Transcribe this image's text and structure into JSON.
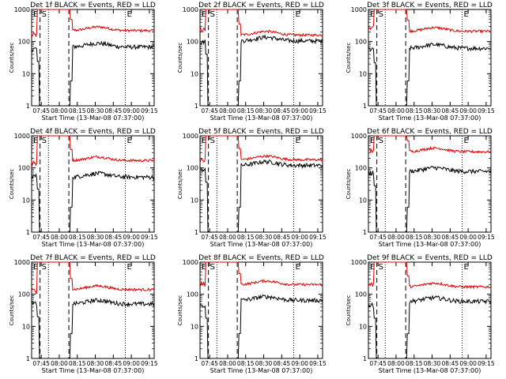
{
  "panel_titles": [
    "Det 1f BLACK = Events, RED = LLD",
    "Det 2f BLACK = Events, RED = LLD",
    "Det 3f BLACK = Events, RED = LLD",
    "Det 4f BLACK = Events, RED = LLD",
    "Det 5f BLACK = Events, RED = LLD",
    "Det 6f BLACK = Events, RED = LLD",
    "Det 7f BLACK = Events, RED = LLD",
    "Det 8f BLACK = Events, RED = LLD",
    "Det 9f BLACK = Events, RED = LLD"
  ],
  "chart_data": {
    "type": "line",
    "xlabel": "Start Time (13-Mar-08 07:37:00)",
    "ylabel": "Counts/sec",
    "yscale": "log",
    "ylim": [
      1,
      1000
    ],
    "x_tick_labels": [
      "07:45",
      "08:00",
      "08:15",
      "08:30",
      "08:45",
      "09:00",
      "09:15"
    ],
    "y_tick_labels": [
      "1",
      "10",
      "100",
      "1000"
    ],
    "series_colors": {
      "events": "#000000",
      "lld": "#e00000"
    },
    "markers": {
      "S_dashed": [
        "07:44",
        "08:08"
      ],
      "E_dotted": [
        "07:51",
        "08:55"
      ]
    },
    "marker_letters": [
      "E",
      "S",
      "E"
    ],
    "panels": [
      {
        "events": {
          "before": 60,
          "after": 68
        },
        "lld": {
          "before": 160,
          "after": 220
        }
      },
      {
        "events": {
          "before": 100,
          "after": 105
        },
        "lld": {
          "before": 230,
          "after": 160
        }
      },
      {
        "events": {
          "before": 55,
          "after": 62
        },
        "lld": {
          "before": 280,
          "after": 210
        }
      },
      {
        "events": {
          "before": 55,
          "after": 52
        },
        "lld": {
          "before": 140,
          "after": 170
        }
      },
      {
        "events": {
          "before": 90,
          "after": 120
        },
        "lld": {
          "before": 170,
          "after": 180
        }
      },
      {
        "events": {
          "before": 70,
          "after": 78
        },
        "lld": {
          "before": 350,
          "after": 320
        }
      },
      {
        "events": {
          "before": 50,
          "after": 50
        },
        "lld": {
          "before": 130,
          "after": 140
        }
      },
      {
        "events": {
          "before": 45,
          "after": 65
        },
        "lld": {
          "before": 210,
          "after": 200
        }
      },
      {
        "events": {
          "before": 45,
          "after": 60
        },
        "lld": {
          "before": 200,
          "after": 170
        }
      }
    ]
  }
}
